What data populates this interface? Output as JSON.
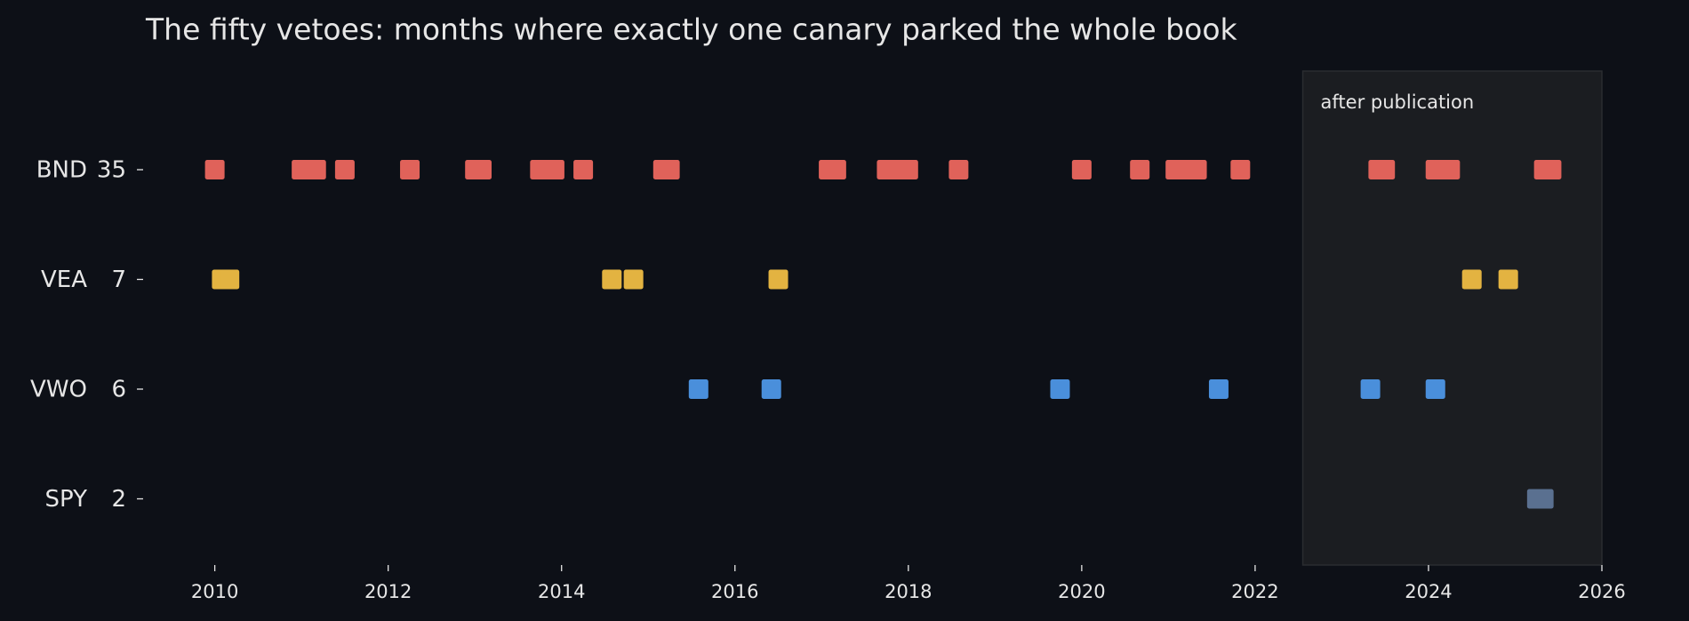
{
  "chart_data": {
    "type": "strip",
    "title": "The fifty vetoes: months where exactly one canary parked the whole book",
    "xlim": [
      2009.2,
      2026
    ],
    "xticks": [
      2010,
      2012,
      2014,
      2016,
      2018,
      2020,
      2022,
      2024,
      2026
    ],
    "highlight": {
      "start": 2022.55,
      "label": "after publication"
    },
    "series": [
      {
        "name": "BND",
        "count": 35,
        "color": "#e0625a",
        "x": [
          2010.0,
          2011.0,
          2011.08,
          2011.17,
          2011.5,
          2012.25,
          2013.0,
          2013.08,
          2013.75,
          2013.83,
          2013.92,
          2014.25,
          2015.17,
          2015.25,
          2017.08,
          2017.17,
          2017.75,
          2017.83,
          2017.92,
          2018.0,
          2018.58,
          2020.0,
          2020.67,
          2021.08,
          2021.17,
          2021.25,
          2021.33,
          2021.83,
          2023.42,
          2023.5,
          2024.08,
          2024.17,
          2024.25,
          2025.33,
          2025.42
        ]
      },
      {
        "name": "VEA",
        "count": 7,
        "color": "#e3b341",
        "x": [
          2010.08,
          2010.17,
          2014.58,
          2014.83,
          2016.5,
          2024.5,
          2024.92
        ]
      },
      {
        "name": "VWO",
        "count": 6,
        "color": "#4a8fdb",
        "x": [
          2015.58,
          2016.42,
          2019.75,
          2021.58,
          2023.33,
          2024.08
        ]
      },
      {
        "name": "SPY",
        "count": 2,
        "color": "#5a7090",
        "x": [
          2025.25,
          2025.33
        ]
      }
    ]
  }
}
